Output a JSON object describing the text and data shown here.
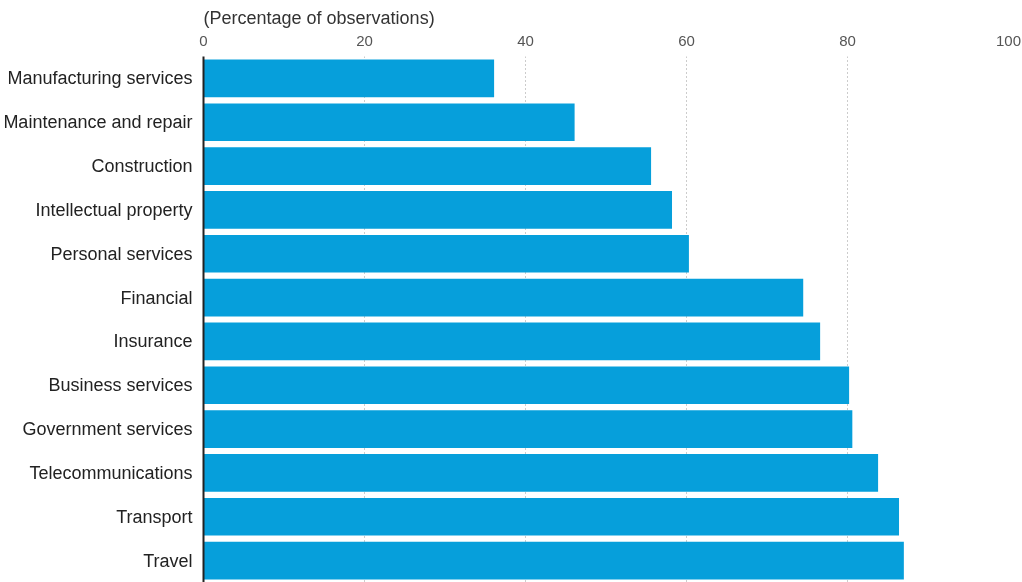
{
  "chart_data": {
    "type": "bar",
    "orientation": "horizontal",
    "subtitle": "(Percentage of observations)",
    "categories": [
      "Manufacturing services",
      "Maintenance and repair",
      "Construction",
      "Intellectual property",
      "Personal services",
      "Financial",
      "Insurance",
      "Business services",
      "Government services",
      "Telecommunications",
      "Transport",
      "Travel"
    ],
    "values": [
      36.1,
      46.1,
      55.6,
      58.2,
      60.3,
      74.5,
      76.6,
      80.2,
      80.6,
      83.8,
      86.4,
      87.0
    ],
    "color": "#069fdb",
    "xlim": [
      0,
      100
    ],
    "xticks": [
      0,
      20,
      40,
      60,
      80,
      100
    ],
    "grid": "x"
  }
}
